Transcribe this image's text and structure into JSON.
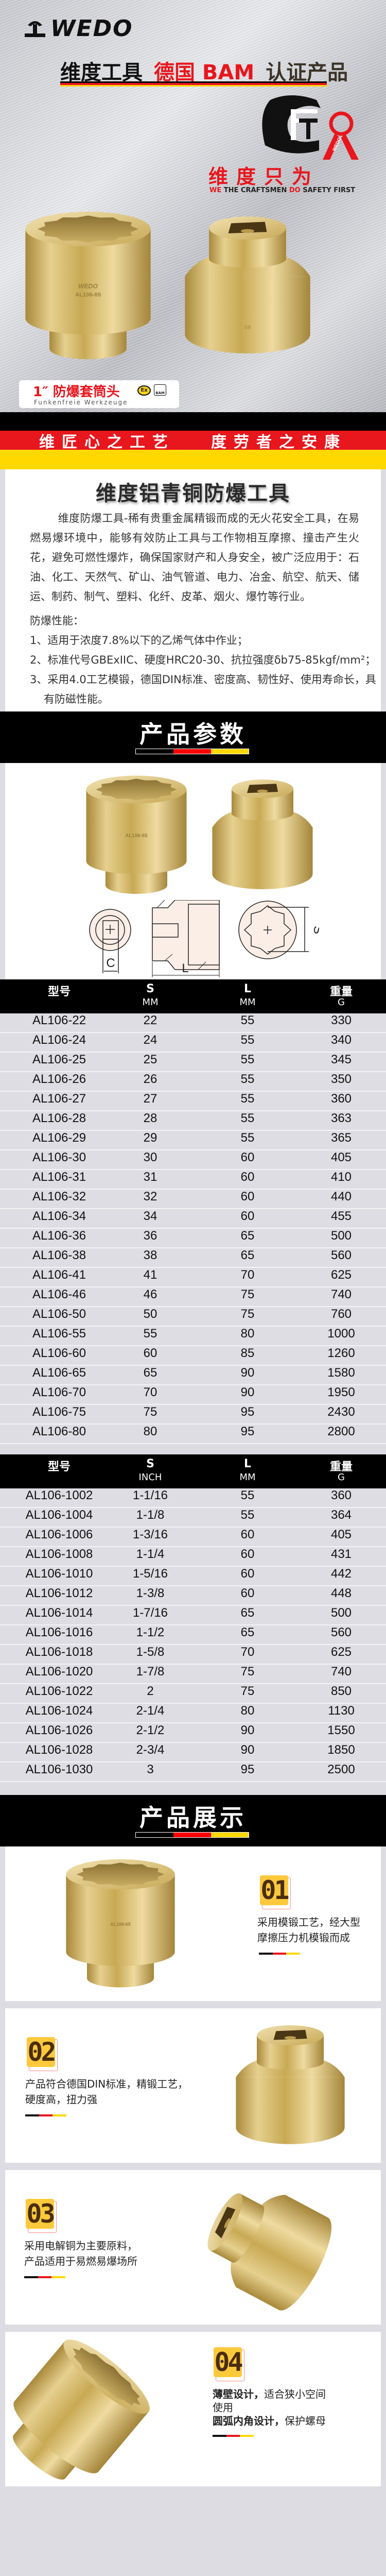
{
  "brand": {
    "logo": "WEDO"
  },
  "colors": {
    "black": "#000000",
    "red": "#e8161d",
    "yellow": "#ffd800",
    "gold": "#d8bd6e",
    "badge_yellow": "#fcc93c",
    "table_row": "#dedde3"
  },
  "hero": {
    "headline_1": "维度工具",
    "headline_2": "德国 BAM",
    "headline_3": "认证产品",
    "cert_logo": "CFT",
    "cert_ribbon": "WEDO",
    "slogan": "维度只为",
    "tagline": {
      "we": "WE",
      "mid": " THE CRAFTSMEN ",
      "do": "DO",
      "end": " SAFETY FIRST"
    },
    "socket_marking_brand": "WEDO",
    "socket_marking": "AL106-65",
    "socket_size_mark": "65",
    "label": {
      "size": "1″",
      "name": "防爆套筒头",
      "sub": "Funkenfreie Werkzeuge",
      "ex_icon": "Ex",
      "bam_icon": "BAM"
    }
  },
  "banner": {
    "left": "维匠心之工艺",
    "right": "度劳者之安康"
  },
  "intro": {
    "title": "维度铝青铜防爆工具",
    "paragraph": "维度防爆工具-稀有贵重金属精锻而成的无火花安全工具，在易燃易爆环境中，能够有效防止工具与工作物相互摩擦、撞击产生火花，避免可燃性爆炸，确保国家财产和人身安全，被广泛应用于：石油、化工、天然气、矿山、油气管道、电力、冶金、航空、航天、储运、制药、制气、塑料、化纤、皮革、烟火、爆竹等行业。",
    "subheading": "防爆性能：",
    "items": [
      "1、适用于浓度7.8%以下的乙烯气体中作业；",
      "2、标准代号GBExIIC、硬度HRC20-30、抗拉强度δb75-85kgf/mm²；",
      "3、采用4.0工艺模锻，德国DIN标准、密度高、韧性好、使用寿命长，具",
      "有防磁性能。"
    ]
  },
  "params": {
    "title": "产品参数",
    "diagram_labels": {
      "c": "C",
      "l": "L",
      "s": "S"
    }
  },
  "table_metric": {
    "headers": [
      {
        "top": "型号",
        "bottom": ""
      },
      {
        "top": "S",
        "bottom": "MM"
      },
      {
        "top": "L",
        "bottom": "MM"
      },
      {
        "top": "重量",
        "bottom": "G"
      }
    ],
    "rows": [
      [
        "AL106-22",
        "22",
        "55",
        "330"
      ],
      [
        "AL106-24",
        "24",
        "55",
        "340"
      ],
      [
        "AL106-25",
        "25",
        "55",
        "345"
      ],
      [
        "AL106-26",
        "26",
        "55",
        "350"
      ],
      [
        "AL106-27",
        "27",
        "55",
        "360"
      ],
      [
        "AL106-28",
        "28",
        "55",
        "363"
      ],
      [
        "AL106-29",
        "29",
        "55",
        "365"
      ],
      [
        "AL106-30",
        "30",
        "60",
        "405"
      ],
      [
        "AL106-31",
        "31",
        "60",
        "410"
      ],
      [
        "AL106-32",
        "32",
        "60",
        "440"
      ],
      [
        "AL106-34",
        "34",
        "60",
        "455"
      ],
      [
        "AL106-36",
        "36",
        "65",
        "500"
      ],
      [
        "AL106-38",
        "38",
        "65",
        "560"
      ],
      [
        "AL106-41",
        "41",
        "70",
        "625"
      ],
      [
        "AL106-46",
        "46",
        "75",
        "740"
      ],
      [
        "AL106-50",
        "50",
        "75",
        "760"
      ],
      [
        "AL106-55",
        "55",
        "80",
        "1000"
      ],
      [
        "AL106-60",
        "60",
        "85",
        "1260"
      ],
      [
        "AL106-65",
        "65",
        "90",
        "1580"
      ],
      [
        "AL106-70",
        "70",
        "90",
        "1950"
      ],
      [
        "AL106-75",
        "75",
        "95",
        "2430"
      ],
      [
        "AL106-80",
        "80",
        "95",
        "2800"
      ]
    ]
  },
  "table_inch": {
    "headers": [
      {
        "top": "型号",
        "bottom": ""
      },
      {
        "top": "S",
        "bottom": "INCH"
      },
      {
        "top": "L",
        "bottom": "MM"
      },
      {
        "top": "重量",
        "bottom": "G"
      }
    ],
    "rows": [
      [
        "AL106-1002",
        "1-1/16",
        "55",
        "360"
      ],
      [
        "AL106-1004",
        "1-1/8",
        "55",
        "364"
      ],
      [
        "AL106-1006",
        "1-3/16",
        "60",
        "405"
      ],
      [
        "AL106-1008",
        "1-1/4",
        "60",
        "431"
      ],
      [
        "AL106-1010",
        "1-5/16",
        "60",
        "442"
      ],
      [
        "AL106-1012",
        "1-3/8",
        "60",
        "448"
      ],
      [
        "AL106-1014",
        "1-7/16",
        "65",
        "500"
      ],
      [
        "AL106-1016",
        "1-1/2",
        "65",
        "560"
      ],
      [
        "AL106-1018",
        "1-5/8",
        "70",
        "625"
      ],
      [
        "AL106-1020",
        "1-7/8",
        "75",
        "740"
      ],
      [
        "AL106-1022",
        "2",
        "75",
        "850"
      ],
      [
        "AL106-1024",
        "2-1/4",
        "80",
        "1130"
      ],
      [
        "AL106-1026",
        "2-1/2",
        "90",
        "1550"
      ],
      [
        "AL106-1028",
        "2-3/4",
        "90",
        "1850"
      ],
      [
        "AL106-1030",
        "3",
        "95",
        "2500"
      ]
    ]
  },
  "showcase": {
    "title": "产品展示",
    "cards": [
      {
        "num": "01",
        "lines": [
          [
            {
              "t": "采用模锻工艺，经大型",
              "b": false
            }
          ],
          [
            {
              "t": "摩擦压力机模锻而成",
              "b": false
            }
          ]
        ]
      },
      {
        "num": "02",
        "lines": [
          [
            {
              "t": "产品符合德国DIN标准，精锻工艺，",
              "b": false
            }
          ],
          [
            {
              "t": "硬度高，扭力强",
              "b": false
            }
          ]
        ]
      },
      {
        "num": "03",
        "lines": [
          [
            {
              "t": "采用电解铜为主要原料，",
              "b": false
            }
          ],
          [
            {
              "t": "产品适用于易燃易爆场所",
              "b": false
            }
          ]
        ]
      },
      {
        "num": "04",
        "lines": [
          [
            {
              "t": "薄壁设计，",
              "b": true
            },
            {
              "t": "适合狭小空间",
              "b": false
            }
          ],
          [
            {
              "t": "使用",
              "b": false
            }
          ],
          [
            {
              "t": "圆弧内角设计，",
              "b": true
            },
            {
              "t": "保护螺母",
              "b": false
            }
          ]
        ]
      }
    ]
  }
}
